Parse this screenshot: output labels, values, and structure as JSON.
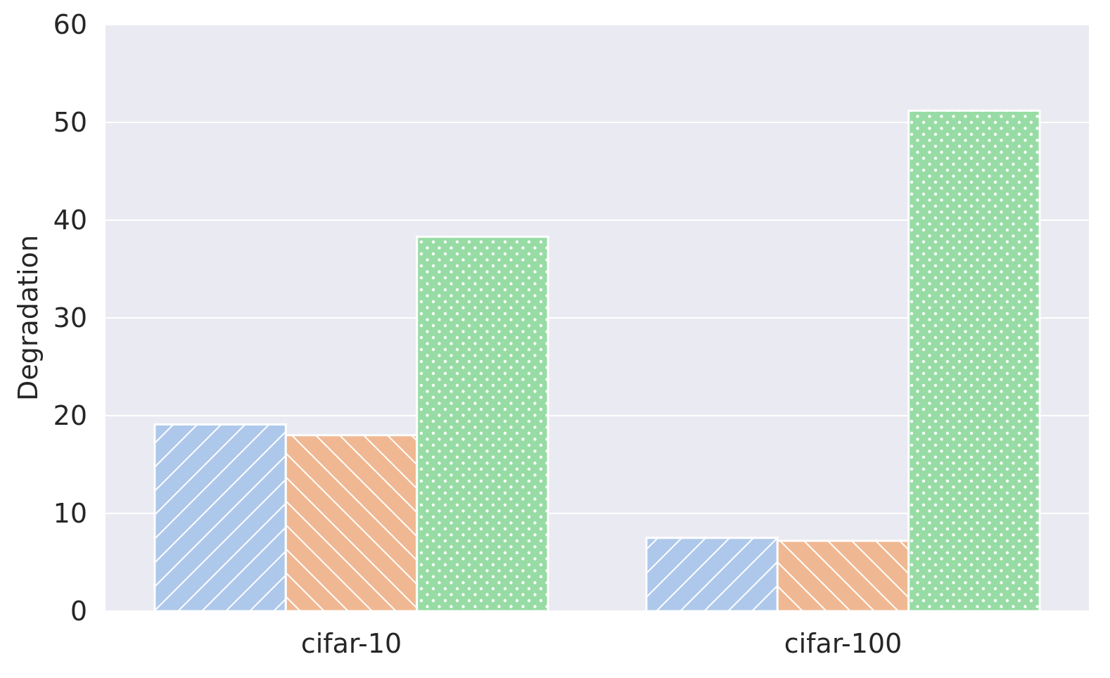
{
  "chart_data": {
    "type": "bar",
    "title": "",
    "xlabel": "",
    "ylabel": "Degradation",
    "ylim": [
      0,
      60
    ],
    "yticks": [
      0,
      10,
      20,
      30,
      40,
      50,
      60
    ],
    "categories": [
      "cifar-10",
      "cifar-100"
    ],
    "grid": true,
    "legend": "none",
    "background": "#eaeaf2",
    "series": [
      {
        "values": [
          19.1,
          7.5
        ],
        "color": "#aec8eb",
        "hatch": "diagonal-forward"
      },
      {
        "values": [
          18.0,
          7.2
        ],
        "color": "#f0b892",
        "hatch": "diagonal-back"
      },
      {
        "values": [
          38.3,
          51.2
        ],
        "color": "#97dca4",
        "hatch": "dots"
      }
    ]
  }
}
